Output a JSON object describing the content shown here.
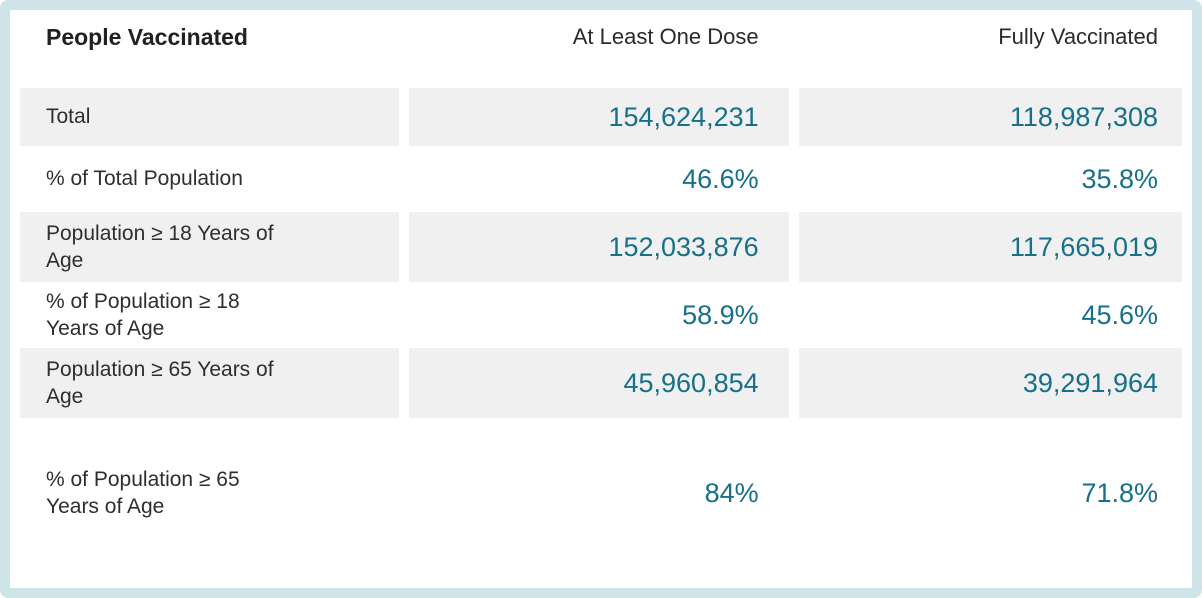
{
  "table": {
    "title": "People Vaccinated",
    "columns": {
      "one_dose": "At Least One Dose",
      "fully": "Fully Vaccinated"
    },
    "rows": [
      {
        "label": "Total",
        "one_dose": "154,624,231",
        "fully": "118,987,308",
        "shaded": true
      },
      {
        "label": "% of Total Population",
        "one_dose": "46.6%",
        "fully": "35.8%",
        "shaded": false
      },
      {
        "label": "Population ≥ 18 Years of\nAge",
        "one_dose": "152,033,876",
        "fully": "117,665,019",
        "shaded": true
      },
      {
        "label": "% of Population ≥ 18\nYears of Age",
        "one_dose": "58.9%",
        "fully": "45.6%",
        "shaded": false
      },
      {
        "label": "Population ≥ 65 Years of\nAge",
        "one_dose": "45,960,854",
        "fully": "39,291,964",
        "shaded": true
      },
      {
        "label": "% of Population ≥ 65\nYears of Age",
        "one_dose": "84%",
        "fully": "71.8%",
        "shaded": false
      }
    ],
    "colors": {
      "accent_teal": "#16708a",
      "border_blue": "#cfe4e9",
      "row_shade": "#f0f0f0",
      "label_text": "#2e2e2e"
    }
  },
  "chart_data": {
    "type": "table",
    "title": "People Vaccinated",
    "columns": [
      "People Vaccinated",
      "At Least One Dose",
      "Fully Vaccinated"
    ],
    "rows": [
      [
        "Total",
        "154,624,231",
        "118,987,308"
      ],
      [
        "% of Total Population",
        "46.6%",
        "35.8%"
      ],
      [
        "Population ≥ 18 Years of Age",
        "152,033,876",
        "117,665,019"
      ],
      [
        "% of Population ≥ 18 Years of Age",
        "58.9%",
        "45.6%"
      ],
      [
        "Population ≥ 65 Years of Age",
        "45,960,854",
        "39,291,964"
      ],
      [
        "% of Population ≥ 65 Years of Age",
        "84%",
        "71.8%"
      ]
    ],
    "layout_hints": {
      "shaded_row_indices": [
        0,
        2,
        4
      ],
      "value_alignment": "right",
      "value_color": "#16708a"
    }
  }
}
